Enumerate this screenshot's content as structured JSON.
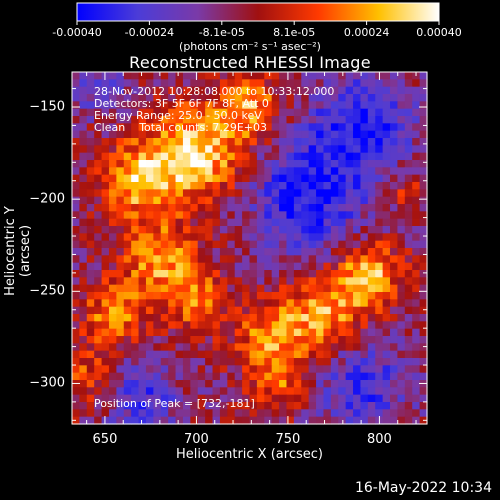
{
  "colorbar": {
    "ticks": [
      "-0.00040",
      "-0.00024",
      "-8.1e-05",
      "8.1e-05",
      "0.00024",
      "0.00040"
    ],
    "unit_label": "(photons cm⁻² s⁻¹ asec⁻²)",
    "colors": [
      "#0000ff",
      "#4b3cd8",
      "#7a3aa8",
      "#a01010",
      "#ff3a00",
      "#ffc000",
      "#ffffff"
    ]
  },
  "chart_data": {
    "type": "heatmap",
    "title": "Reconstructed RHESSI Image",
    "xlabel": "Heliocentric X (arcsec)",
    "ylabel": "Heliocentric Y (arcsec)",
    "xlim": [
      632,
      826
    ],
    "ylim": [
      -322,
      -131
    ],
    "xticks": [
      650,
      700,
      750,
      800
    ],
    "yticks": [
      -150,
      -200,
      -250,
      -300
    ],
    "zlim": [
      -0.0004,
      0.0004
    ],
    "peak": [
      732,
      -181
    ],
    "annotations": [
      "28-Nov-2012 10:28:08.000 to 10:33:12.000",
      "Detectors: 3F 5F 6F 7F 8F, Att 0",
      "Energy Range: 25.0 - 50.0 keV",
      "Clean    Total counts: 7.29E+03"
    ],
    "peak_label": "Position of Peak = [732,-181]",
    "sources": [
      {
        "x": 700,
        "y": -175,
        "amp": 0.0004,
        "sigma": 18
      },
      {
        "x": 668,
        "y": -190,
        "amp": 0.00032,
        "sigma": 14
      },
      {
        "x": 730,
        "y": -150,
        "amp": 0.00028,
        "sigma": 12
      },
      {
        "x": 680,
        "y": -232,
        "amp": 0.0003,
        "sigma": 14
      },
      {
        "x": 655,
        "y": -262,
        "amp": 0.00026,
        "sigma": 12
      },
      {
        "x": 700,
        "y": -255,
        "amp": 0.00022,
        "sigma": 12
      },
      {
        "x": 770,
        "y": -262,
        "amp": 0.00032,
        "sigma": 16
      },
      {
        "x": 795,
        "y": -240,
        "amp": 0.00034,
        "sigma": 12
      },
      {
        "x": 740,
        "y": -275,
        "amp": 0.00026,
        "sigma": 13
      },
      {
        "x": 745,
        "y": -300,
        "amp": 0.0002,
        "sigma": 11
      },
      {
        "x": 640,
        "y": -295,
        "amp": 0.00018,
        "sigma": 12
      },
      {
        "x": 815,
        "y": -195,
        "amp": 0.00016,
        "sigma": 8
      },
      {
        "x": 760,
        "y": -200,
        "amp": -0.0003,
        "sigma": 22
      },
      {
        "x": 790,
        "y": -160,
        "amp": -0.00028,
        "sigma": 20
      },
      {
        "x": 790,
        "y": -300,
        "amp": -0.00024,
        "sigma": 18
      },
      {
        "x": 670,
        "y": -308,
        "amp": -0.00022,
        "sigma": 14
      },
      {
        "x": 648,
        "y": -140,
        "amp": -0.0002,
        "sigma": 10
      }
    ]
  },
  "footer": {
    "timestamp": "16-May-2022 10:34"
  }
}
